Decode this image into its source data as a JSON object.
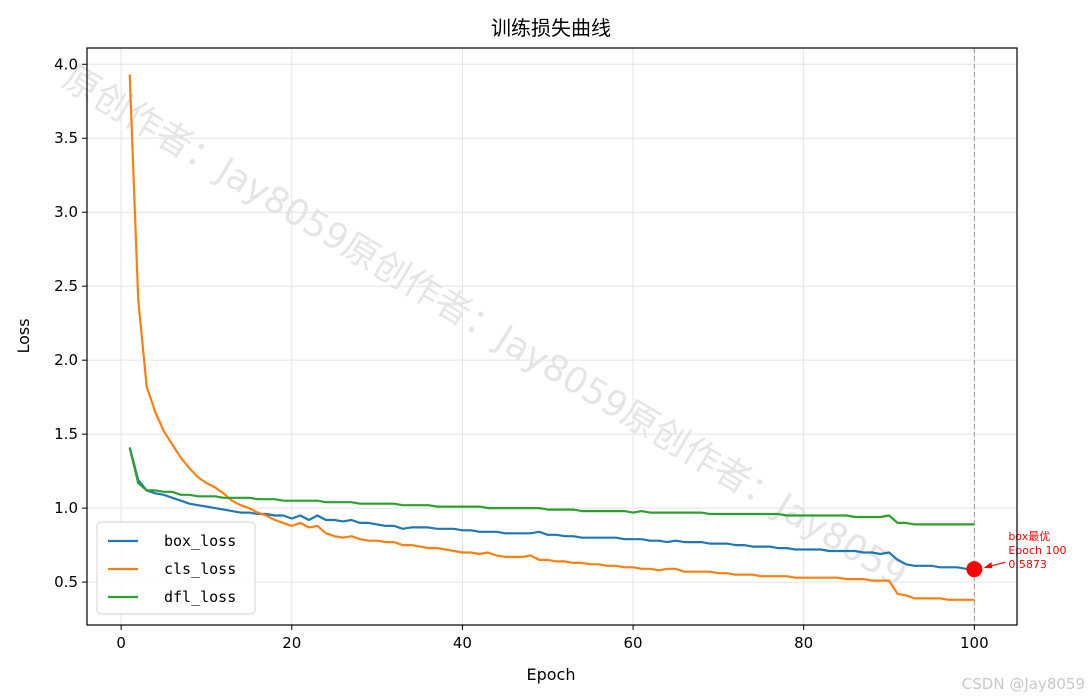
{
  "chart_data": {
    "type": "line",
    "title": "训练损失曲线",
    "xlabel": "Epoch",
    "ylabel": "Loss",
    "xlim": [
      -4,
      105
    ],
    "ylim": [
      0.21,
      4.11
    ],
    "xticks": [
      0,
      20,
      40,
      60,
      80,
      100
    ],
    "yticks": [
      0.5,
      1.0,
      1.5,
      2.0,
      2.5,
      3.0,
      3.5,
      4.0
    ],
    "xtick_labels": [
      "0",
      "20",
      "40",
      "60",
      "80",
      "100"
    ],
    "ytick_labels": [
      "0.5",
      "1.0",
      "1.5",
      "2.0",
      "2.5",
      "3.0",
      "3.5",
      "4.0"
    ],
    "grid": true,
    "legend_position": "lower-left",
    "series": [
      {
        "name": "box_loss",
        "color": "#1f77b4",
        "x": [
          1,
          2,
          3,
          4,
          5,
          6,
          7,
          8,
          9,
          10,
          11,
          12,
          13,
          14,
          15,
          16,
          17,
          18,
          19,
          20,
          21,
          22,
          23,
          24,
          25,
          26,
          27,
          28,
          29,
          30,
          31,
          32,
          33,
          34,
          35,
          36,
          37,
          38,
          39,
          40,
          41,
          42,
          43,
          44,
          45,
          46,
          47,
          48,
          49,
          50,
          51,
          52,
          53,
          54,
          55,
          56,
          57,
          58,
          59,
          60,
          61,
          62,
          63,
          64,
          65,
          66,
          67,
          68,
          69,
          70,
          71,
          72,
          73,
          74,
          75,
          76,
          77,
          78,
          79,
          80,
          81,
          82,
          83,
          84,
          85,
          86,
          87,
          88,
          89,
          90,
          91,
          92,
          93,
          94,
          95,
          96,
          97,
          98,
          99,
          100
        ],
        "values": [
          1.41,
          1.19,
          1.12,
          1.1,
          1.09,
          1.07,
          1.05,
          1.03,
          1.02,
          1.01,
          1.0,
          0.99,
          0.98,
          0.97,
          0.97,
          0.96,
          0.96,
          0.95,
          0.95,
          0.93,
          0.95,
          0.92,
          0.95,
          0.92,
          0.92,
          0.91,
          0.92,
          0.9,
          0.9,
          0.89,
          0.88,
          0.88,
          0.86,
          0.87,
          0.87,
          0.87,
          0.86,
          0.86,
          0.86,
          0.85,
          0.85,
          0.84,
          0.84,
          0.84,
          0.83,
          0.83,
          0.83,
          0.83,
          0.84,
          0.82,
          0.82,
          0.81,
          0.81,
          0.8,
          0.8,
          0.8,
          0.8,
          0.8,
          0.79,
          0.79,
          0.79,
          0.78,
          0.78,
          0.77,
          0.78,
          0.77,
          0.77,
          0.77,
          0.76,
          0.76,
          0.76,
          0.75,
          0.75,
          0.74,
          0.74,
          0.74,
          0.73,
          0.73,
          0.72,
          0.72,
          0.72,
          0.72,
          0.71,
          0.71,
          0.71,
          0.71,
          0.7,
          0.7,
          0.69,
          0.7,
          0.65,
          0.62,
          0.61,
          0.61,
          0.61,
          0.6,
          0.6,
          0.6,
          0.59,
          0.5873
        ]
      },
      {
        "name": "cls_loss",
        "color": "#ff7f0e",
        "x": [
          1,
          2,
          3,
          4,
          5,
          6,
          7,
          8,
          9,
          10,
          11,
          12,
          13,
          14,
          15,
          16,
          17,
          18,
          19,
          20,
          21,
          22,
          23,
          24,
          25,
          26,
          27,
          28,
          29,
          30,
          31,
          32,
          33,
          34,
          35,
          36,
          37,
          38,
          39,
          40,
          41,
          42,
          43,
          44,
          45,
          46,
          47,
          48,
          49,
          50,
          51,
          52,
          53,
          54,
          55,
          56,
          57,
          58,
          59,
          60,
          61,
          62,
          63,
          64,
          65,
          66,
          67,
          68,
          69,
          70,
          71,
          72,
          73,
          74,
          75,
          76,
          77,
          78,
          79,
          80,
          81,
          82,
          83,
          84,
          85,
          86,
          87,
          88,
          89,
          90,
          91,
          92,
          93,
          94,
          95,
          96,
          97,
          98,
          99,
          100
        ],
        "values": [
          3.93,
          2.41,
          1.82,
          1.65,
          1.52,
          1.43,
          1.34,
          1.27,
          1.21,
          1.17,
          1.14,
          1.1,
          1.05,
          1.02,
          1.0,
          0.97,
          0.95,
          0.92,
          0.9,
          0.88,
          0.9,
          0.87,
          0.88,
          0.83,
          0.81,
          0.8,
          0.81,
          0.79,
          0.78,
          0.78,
          0.77,
          0.77,
          0.75,
          0.75,
          0.74,
          0.73,
          0.73,
          0.72,
          0.71,
          0.7,
          0.7,
          0.69,
          0.7,
          0.68,
          0.67,
          0.67,
          0.67,
          0.68,
          0.65,
          0.65,
          0.64,
          0.64,
          0.63,
          0.63,
          0.62,
          0.62,
          0.61,
          0.61,
          0.6,
          0.6,
          0.59,
          0.59,
          0.58,
          0.59,
          0.59,
          0.57,
          0.57,
          0.57,
          0.57,
          0.56,
          0.56,
          0.55,
          0.55,
          0.55,
          0.54,
          0.54,
          0.54,
          0.54,
          0.53,
          0.53,
          0.53,
          0.53,
          0.53,
          0.53,
          0.52,
          0.52,
          0.52,
          0.51,
          0.51,
          0.51,
          0.42,
          0.41,
          0.39,
          0.39,
          0.39,
          0.39,
          0.38,
          0.38,
          0.38,
          0.38
        ]
      },
      {
        "name": "dfl_loss",
        "color": "#2ca02c",
        "x": [
          1,
          2,
          3,
          4,
          5,
          6,
          7,
          8,
          9,
          10,
          11,
          12,
          13,
          14,
          15,
          16,
          17,
          18,
          19,
          20,
          21,
          22,
          23,
          24,
          25,
          26,
          27,
          28,
          29,
          30,
          31,
          32,
          33,
          34,
          35,
          36,
          37,
          38,
          39,
          40,
          41,
          42,
          43,
          44,
          45,
          46,
          47,
          48,
          49,
          50,
          51,
          52,
          53,
          54,
          55,
          56,
          57,
          58,
          59,
          60,
          61,
          62,
          63,
          64,
          65,
          66,
          67,
          68,
          69,
          70,
          71,
          72,
          73,
          74,
          75,
          76,
          77,
          78,
          79,
          80,
          81,
          82,
          83,
          84,
          85,
          86,
          87,
          88,
          89,
          90,
          91,
          92,
          93,
          94,
          95,
          96,
          97,
          98,
          99,
          100
        ],
        "values": [
          1.41,
          1.17,
          1.12,
          1.12,
          1.11,
          1.11,
          1.09,
          1.09,
          1.08,
          1.08,
          1.08,
          1.07,
          1.07,
          1.07,
          1.07,
          1.06,
          1.06,
          1.06,
          1.05,
          1.05,
          1.05,
          1.05,
          1.05,
          1.04,
          1.04,
          1.04,
          1.04,
          1.03,
          1.03,
          1.03,
          1.03,
          1.03,
          1.02,
          1.02,
          1.02,
          1.02,
          1.01,
          1.01,
          1.01,
          1.01,
          1.01,
          1.01,
          1.0,
          1.0,
          1.0,
          1.0,
          1.0,
          1.0,
          1.0,
          0.99,
          0.99,
          0.99,
          0.99,
          0.98,
          0.98,
          0.98,
          0.98,
          0.98,
          0.98,
          0.97,
          0.98,
          0.97,
          0.97,
          0.97,
          0.97,
          0.97,
          0.97,
          0.97,
          0.96,
          0.96,
          0.96,
          0.96,
          0.96,
          0.96,
          0.96,
          0.96,
          0.96,
          0.95,
          0.95,
          0.95,
          0.95,
          0.95,
          0.95,
          0.95,
          0.95,
          0.94,
          0.94,
          0.94,
          0.94,
          0.95,
          0.9,
          0.9,
          0.89,
          0.89,
          0.89,
          0.89,
          0.89,
          0.89,
          0.89,
          0.89
        ]
      }
    ],
    "annotation": {
      "lines": [
        "box最优",
        "Epoch 100",
        "0.5873"
      ],
      "point": {
        "x": 100,
        "y": 0.5873
      },
      "color": "#ff0000",
      "vline_x": 100
    },
    "watermark": "原创作者：Jay8059原创作者：Jay8059原创作者：Jay8059",
    "credit": "CSDN @Jay8059"
  }
}
